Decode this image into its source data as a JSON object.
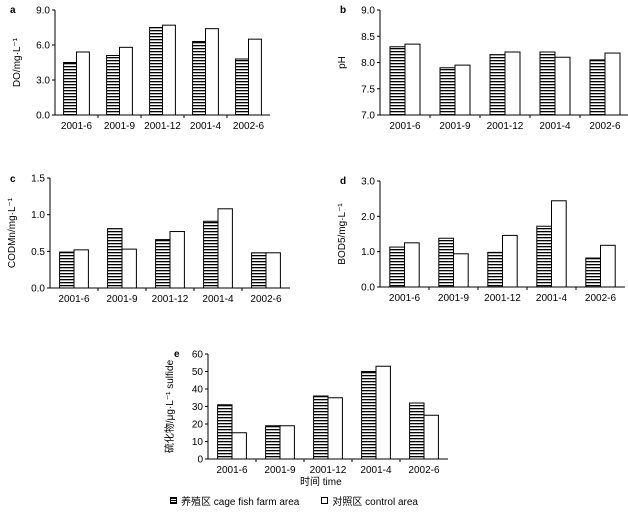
{
  "chart_data": [
    {
      "panel": "a",
      "type": "bar",
      "categories": [
        "2001-6",
        "2001-9",
        "2001-12",
        "2001-4",
        "2002-6"
      ],
      "ylabel": "DO/mg·L⁻¹",
      "ylim": [
        0.0,
        9.0
      ],
      "yticks": [
        "0.0",
        "3.0",
        "6.0",
        "9.0"
      ],
      "series": [
        {
          "name": "养殖区 cage fish farm area",
          "values": [
            4.5,
            5.1,
            7.5,
            6.3,
            4.8
          ]
        },
        {
          "name": "对照区 control area",
          "values": [
            5.4,
            5.8,
            7.7,
            7.4,
            6.5
          ]
        }
      ]
    },
    {
      "panel": "b",
      "type": "bar",
      "categories": [
        "2001-6",
        "2001-9",
        "2001-12",
        "2001-4",
        "2002-6"
      ],
      "ylabel": "pH",
      "ylim": [
        7.0,
        9.0
      ],
      "yticks": [
        "7.0",
        "7.5",
        "8.0",
        "8.5",
        "9.0"
      ],
      "series": [
        {
          "name": "养殖区 cage fish farm area",
          "values": [
            8.3,
            7.9,
            8.15,
            8.2,
            8.05
          ]
        },
        {
          "name": "对照区 control area",
          "values": [
            8.35,
            7.95,
            8.2,
            8.1,
            8.18
          ]
        }
      ]
    },
    {
      "panel": "c",
      "type": "bar",
      "categories": [
        "2001-6",
        "2001-9",
        "2001-12",
        "2001-4",
        "2002-6"
      ],
      "ylabel": "CODMn/mg·L⁻¹",
      "ylim": [
        0.0,
        1.5
      ],
      "yticks": [
        "0.0",
        "0.5",
        "1.0",
        "1.5"
      ],
      "series": [
        {
          "name": "养殖区 cage fish farm area",
          "values": [
            0.49,
            0.81,
            0.66,
            0.91,
            0.48
          ]
        },
        {
          "name": "对照区 control area",
          "values": [
            0.52,
            0.53,
            0.77,
            1.08,
            0.48
          ]
        }
      ]
    },
    {
      "panel": "d",
      "type": "bar",
      "categories": [
        "2001-6",
        "2001-9",
        "2001-12",
        "2001-4",
        "2002-6"
      ],
      "ylabel": "BOD5/mg·L⁻¹",
      "ylim": [
        0.0,
        3.0
      ],
      "yticks": [
        "0.0",
        "1.0",
        "2.0",
        "3.0"
      ],
      "series": [
        {
          "name": "养殖区 cage fish farm area",
          "values": [
            1.13,
            1.38,
            0.98,
            1.72,
            0.82
          ]
        },
        {
          "name": "对照区 control area",
          "values": [
            1.25,
            0.94,
            1.46,
            2.44,
            1.18
          ]
        }
      ]
    },
    {
      "panel": "e",
      "type": "bar",
      "categories": [
        "2001-6",
        "2001-9",
        "2001-12",
        "2001-4",
        "2002-6"
      ],
      "ylabel": "硫化物/μg·L⁻¹ sulfide",
      "ylim": [
        0,
        60
      ],
      "yticks": [
        "0",
        "10",
        "20",
        "30",
        "40",
        "50",
        "60"
      ],
      "series": [
        {
          "name": "养殖区 cage fish farm area",
          "values": [
            31,
            19,
            36,
            50,
            32
          ]
        },
        {
          "name": "对照区 control area",
          "values": [
            15,
            19,
            35,
            53,
            25
          ]
        }
      ]
    }
  ],
  "xtitle": "时间 time",
  "legend": {
    "farm": "养殖区 cage fish farm area",
    "control": "对照区 control area"
  }
}
